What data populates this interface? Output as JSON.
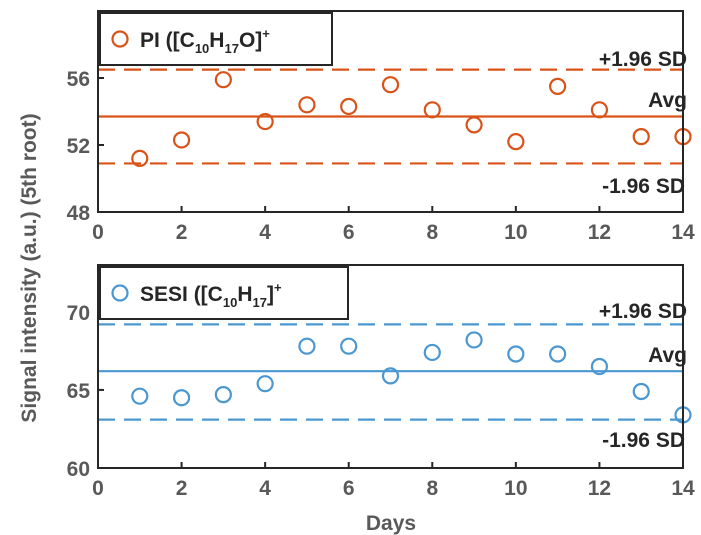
{
  "ylabel": "Signal intensity (a.u.) (5th root)",
  "xlabel": "Days",
  "chart_data": [
    {
      "type": "scatter",
      "legend": {
        "prefix": "PI ([C",
        "sub1": "10",
        "mid": "H",
        "sub2": "17",
        "suffix": "O]",
        "sup": "+"
      },
      "color": "#d95319",
      "x": [
        1,
        2,
        3,
        4,
        5,
        6,
        7,
        8,
        9,
        10,
        11,
        12,
        13,
        14
      ],
      "y": [
        51.2,
        52.3,
        55.9,
        53.4,
        54.4,
        54.3,
        55.6,
        54.1,
        53.2,
        52.2,
        55.5,
        54.1,
        52.5,
        52.5
      ],
      "avg": 53.7,
      "upper": 56.5,
      "lower": 50.9,
      "xlim": [
        0,
        14
      ],
      "ylim": [
        48,
        60
      ],
      "xticks": [
        "0",
        "2",
        "4",
        "6",
        "8",
        "10",
        "12",
        "14"
      ],
      "xtick_values": [
        0,
        2,
        4,
        6,
        8,
        10,
        12,
        14
      ],
      "yticks": [
        "48",
        "52",
        "56"
      ],
      "ytick_values": [
        48,
        52,
        56
      ],
      "labels": {
        "upper": "+1.96 SD",
        "avg": "Avg",
        "lower": "-1.96 SD"
      }
    },
    {
      "type": "scatter",
      "legend": {
        "prefix": "SESI ([C",
        "sub1": "10",
        "mid": "H",
        "sub2": "17",
        "suffix": "]",
        "sup": "+"
      },
      "color": "#4a97d1",
      "x": [
        1,
        2,
        3,
        4,
        5,
        6,
        7,
        8,
        9,
        10,
        11,
        12,
        13,
        14
      ],
      "y": [
        64.6,
        64.5,
        64.7,
        65.4,
        67.8,
        67.8,
        65.9,
        67.4,
        68.2,
        67.3,
        67.3,
        66.5,
        64.9,
        63.4
      ],
      "avg": 66.2,
      "upper": 69.2,
      "lower": 63.1,
      "xlim": [
        0,
        14
      ],
      "ylim": [
        60,
        73
      ],
      "xticks": [
        "0",
        "2",
        "4",
        "6",
        "8",
        "10",
        "12",
        "14"
      ],
      "xtick_values": [
        0,
        2,
        4,
        6,
        8,
        10,
        12,
        14
      ],
      "yticks": [
        "60",
        "65",
        "70"
      ],
      "ytick_values": [
        60,
        65,
        70
      ],
      "labels": {
        "upper": "+1.96 SD",
        "avg": "Avg",
        "lower": "-1.96 SD"
      }
    }
  ]
}
